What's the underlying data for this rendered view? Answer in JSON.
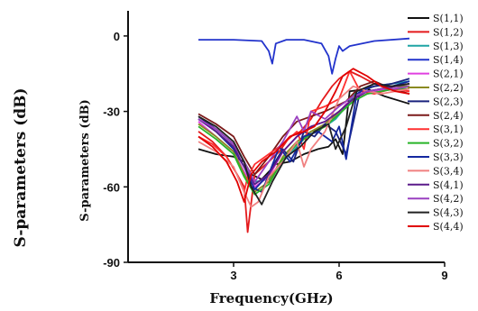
{
  "chart_data": {
    "type": "line",
    "xlabel": "Frequency(GHz)",
    "ylabel": "S-parameters (dB)",
    "outer_ylabel": "S-parameters (dB)",
    "xlim": [
      0,
      9
    ],
    "ylim": [
      -90,
      10
    ],
    "xticks": [
      3,
      6,
      9
    ],
    "yticks": [
      0,
      -30,
      -60,
      -90
    ],
    "legend_position": "right",
    "grid": false,
    "series": [
      {
        "name": "S(1,1)",
        "color": "#111111",
        "x": [
          2,
          2.5,
          3,
          3.3,
          3.5,
          3.8,
          4.2,
          4.6,
          5.0,
          5.4,
          5.7,
          5.9,
          6.1,
          6.3,
          6.8,
          7.3,
          8.0
        ],
        "y": [
          -45,
          -47,
          -48,
          -50,
          -55,
          -57,
          -51,
          -50,
          -47,
          -45,
          -44,
          -41,
          -47,
          -22,
          -21,
          -24,
          -27
        ]
      },
      {
        "name": "S(1,2)",
        "color": "#e41a1c",
        "x": [
          2,
          2.4,
          2.8,
          3.1,
          3.3,
          3.4,
          3.6,
          4.0,
          4.3,
          4.6,
          4.9,
          5.2,
          5.5,
          5.8,
          6.0,
          6.3,
          6.6,
          7.0,
          7.5,
          8.0
        ],
        "y": [
          -38,
          -42,
          -48,
          -55,
          -60,
          -78,
          -55,
          -50,
          -46,
          -40,
          -38,
          -33,
          -26,
          -20,
          -17,
          -14,
          -16,
          -19,
          -21,
          -22
        ]
      },
      {
        "name": "S(1,3)",
        "color": "#1fa4a4",
        "x": [
          2,
          2.5,
          3.0,
          3.3,
          3.6,
          4.0,
          4.4,
          4.8,
          5.2,
          5.6,
          5.9,
          6.2,
          6.5,
          7.0,
          7.5,
          8.0
        ],
        "y": [
          -33,
          -38,
          -44,
          -52,
          -58,
          -57,
          -50,
          -44,
          -38,
          -36,
          -33,
          -28,
          -22,
          -20,
          -19,
          -18
        ]
      },
      {
        "name": "S(1,4)",
        "color": "#2233cc",
        "x": [
          2,
          3.0,
          3.8,
          4.0,
          4.1,
          4.2,
          4.5,
          5.0,
          5.5,
          5.7,
          5.8,
          5.9,
          6.0,
          6.1,
          6.3,
          7.0,
          8.0
        ],
        "y": [
          -1.5,
          -1.5,
          -2,
          -6,
          -11,
          -3,
          -1.5,
          -1.5,
          -3,
          -8,
          -15,
          -9,
          -4,
          -6,
          -4,
          -2,
          -1
        ]
      },
      {
        "name": "S(2,1)",
        "color": "#e040e0",
        "x": [
          2,
          2.5,
          3.0,
          3.3,
          3.6,
          4.0,
          4.4,
          4.8,
          5.2,
          5.6,
          5.9,
          6.2,
          6.6,
          7.0,
          7.5,
          8.0
        ],
        "y": [
          -34,
          -40,
          -46,
          -54,
          -60,
          -56,
          -46,
          -40,
          -36,
          -34,
          -32,
          -27,
          -24,
          -22,
          -21,
          -20
        ]
      },
      {
        "name": "S(2,2)",
        "color": "#8a8a20",
        "x": [
          2,
          2.5,
          3.0,
          3.3,
          3.6,
          4.0,
          4.4,
          4.8,
          5.2,
          5.6,
          6.0,
          6.4,
          6.8,
          7.2,
          7.6,
          8.0
        ],
        "y": [
          -35,
          -40,
          -46,
          -55,
          -62,
          -58,
          -48,
          -42,
          -38,
          -35,
          -30,
          -25,
          -22,
          -21,
          -20,
          -20
        ]
      },
      {
        "name": "S(2,3)",
        "color": "#1a237e",
        "x": [
          2,
          2.5,
          3.0,
          3.3,
          3.5,
          3.8,
          4.1,
          4.4,
          4.7,
          5.0,
          5.3,
          5.6,
          5.9,
          6.2,
          6.6,
          7.0,
          7.5,
          8.0
        ],
        "y": [
          -32,
          -37,
          -43,
          -50,
          -60,
          -62,
          -52,
          -45,
          -50,
          -38,
          -40,
          -35,
          -38,
          -47,
          -22,
          -20,
          -19,
          -17
        ]
      },
      {
        "name": "S(2,4)",
        "color": "#7b1a1a",
        "x": [
          2,
          2.5,
          3.0,
          3.3,
          3.6,
          4.0,
          4.4,
          4.8,
          5.2,
          5.6,
          5.9,
          6.2,
          6.6,
          7.0,
          7.5,
          8.0
        ],
        "y": [
          -31,
          -35,
          -40,
          -48,
          -55,
          -48,
          -40,
          -34,
          -32,
          -30,
          -28,
          -26,
          -20,
          -18,
          -21,
          -23
        ]
      },
      {
        "name": "S(3,1)",
        "color": "#ff3030",
        "x": [
          2,
          2.4,
          2.8,
          3.1,
          3.3,
          3.4,
          3.6,
          4.0,
          4.4,
          4.8,
          5.0,
          5.2,
          5.6,
          6.0,
          6.3,
          6.6,
          7.0,
          7.5,
          8.0
        ],
        "y": [
          -40,
          -43,
          -48,
          -55,
          -62,
          -56,
          -51,
          -47,
          -43,
          -38,
          -45,
          -30,
          -28,
          -25,
          -14,
          -22,
          -23,
          -21,
          -22
        ]
      },
      {
        "name": "S(3,2)",
        "color": "#28b428",
        "x": [
          2,
          2.5,
          3.0,
          3.3,
          3.6,
          4.0,
          4.4,
          4.8,
          5.2,
          5.6,
          6.0,
          6.4,
          6.8,
          7.2,
          7.6,
          8.0
        ],
        "y": [
          -36,
          -41,
          -47,
          -56,
          -63,
          -59,
          -49,
          -43,
          -39,
          -36,
          -31,
          -26,
          -23,
          -22,
          -21,
          -21
        ]
      },
      {
        "name": "S(3,3)",
        "color": "#1428a0",
        "x": [
          2,
          2.5,
          3.0,
          3.3,
          3.6,
          4.0,
          4.3,
          4.6,
          5.0,
          5.4,
          5.8,
          6.0,
          6.2,
          6.5,
          7.0,
          7.5,
          8.0
        ],
        "y": [
          -33,
          -38,
          -45,
          -52,
          -61,
          -55,
          -44,
          -50,
          -40,
          -38,
          -42,
          -36,
          -49,
          -23,
          -19,
          -20,
          -18
        ]
      },
      {
        "name": "S(3,4)",
        "color": "#f08080",
        "x": [
          2,
          2.5,
          3.0,
          3.3,
          3.5,
          3.7,
          4.0,
          4.4,
          4.8,
          5.0,
          5.2,
          5.6,
          6.0,
          6.4,
          6.8,
          7.2,
          7.6,
          8.0
        ],
        "y": [
          -42,
          -46,
          -52,
          -62,
          -68,
          -66,
          -56,
          -50,
          -42,
          -52,
          -45,
          -38,
          -25,
          -20,
          -22,
          -23,
          -22,
          -21
        ]
      },
      {
        "name": "S(4,1)",
        "color": "#5a1a8a",
        "x": [
          2,
          2.5,
          3.0,
          3.3,
          3.6,
          4.0,
          4.4,
          4.8,
          5.2,
          5.6,
          6.0,
          6.4,
          6.8,
          7.2,
          7.6,
          8.0
        ],
        "y": [
          -33,
          -38,
          -44,
          -52,
          -59,
          -55,
          -46,
          -40,
          -36,
          -34,
          -30,
          -25,
          -22,
          -21,
          -20,
          -19
        ]
      },
      {
        "name": "S(4,2)",
        "color": "#9a40c0",
        "x": [
          2,
          2.5,
          3.0,
          3.3,
          3.6,
          4.0,
          4.4,
          4.8,
          5.0,
          5.2,
          5.6,
          6.0,
          6.4,
          6.8,
          7.2,
          7.6,
          8.0
        ],
        "y": [
          -33,
          -37,
          -43,
          -50,
          -58,
          -50,
          -42,
          -32,
          -38,
          -30,
          -33,
          -28,
          -24,
          -22,
          -21,
          -21,
          -20
        ]
      },
      {
        "name": "S(4,3)",
        "color": "#222222",
        "x": [
          2,
          2.5,
          3.0,
          3.3,
          3.5,
          3.8,
          4.1,
          4.5,
          4.9,
          5.3,
          5.7,
          5.9,
          6.2,
          6.5,
          7.0,
          7.5,
          8.0
        ],
        "y": [
          -32,
          -36,
          -42,
          -50,
          -60,
          -67,
          -58,
          -48,
          -44,
          -38,
          -35,
          -45,
          -36,
          -22,
          -19,
          -20,
          -19
        ]
      },
      {
        "name": "S(4,4)",
        "color": "#e00000",
        "x": [
          2,
          2.4,
          2.8,
          3.1,
          3.3,
          3.5,
          3.8,
          4.2,
          4.6,
          5.0,
          5.3,
          5.6,
          5.9,
          6.1,
          6.4,
          6.8,
          7.2,
          7.6,
          8.0
        ],
        "y": [
          -40,
          -44,
          -50,
          -58,
          -66,
          -55,
          -50,
          -46,
          -40,
          -38,
          -36,
          -30,
          -22,
          -16,
          -13,
          -16,
          -20,
          -22,
          -23
        ]
      }
    ]
  }
}
